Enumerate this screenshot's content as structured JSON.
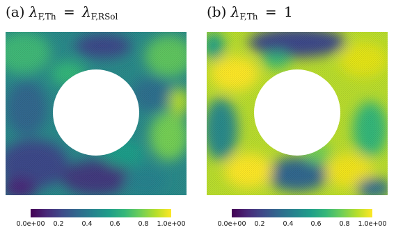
{
  "colormap": {
    "name": "viridis",
    "stops": [
      "#440154",
      "#482878",
      "#3e4a89",
      "#31688e",
      "#26828e",
      "#1f9e89",
      "#35b779",
      "#6ece58",
      "#b5de2b",
      "#fde725"
    ]
  },
  "panels": [
    {
      "label": "(a)",
      "lhs": "λ",
      "lhs_sub": "F,Th",
      "eq": "=",
      "rhs": "λ",
      "rhs_sub": "F,RSol",
      "colorbar": {
        "ticks": [
          "0.0e+00",
          "0.2",
          "0.4",
          "0.6",
          "0.8",
          "1.0e+00"
        ],
        "range": [
          0,
          1
        ]
      }
    },
    {
      "label": "(b)",
      "lhs": "λ",
      "lhs_sub": "F,Th",
      "eq": "=",
      "rhs": "1",
      "colorbar": {
        "ticks": [
          "0.0e+00",
          "0.2",
          "0.4",
          "0.6",
          "0.8",
          "1.0e+00"
        ],
        "range": [
          0,
          1
        ]
      }
    }
  ]
}
